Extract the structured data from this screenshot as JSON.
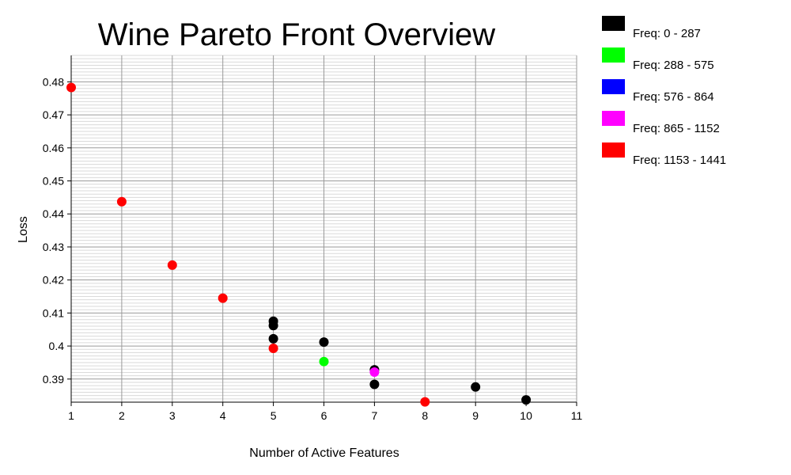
{
  "chart_data": {
    "type": "scatter",
    "title": "Wine Pareto Front Overview",
    "xlabel": "Number of Active Features",
    "ylabel": "Loss",
    "xlim": [
      1,
      11
    ],
    "ylim": [
      0.383,
      0.488
    ],
    "x_ticks": [
      "1",
      "2",
      "3",
      "4",
      "5",
      "6",
      "7",
      "8",
      "9",
      "10",
      "11"
    ],
    "y_ticks": [
      "0.39",
      "0.4",
      "0.41",
      "0.42",
      "0.43",
      "0.44",
      "0.45",
      "0.46",
      "0.47",
      "0.48"
    ],
    "grid": true,
    "legend_position": "right",
    "series": [
      {
        "name": "Freq: 0 - 287",
        "color": "#000000",
        "points": [
          [
            5,
            0.4075
          ],
          [
            5,
            0.4062
          ],
          [
            5,
            0.4022
          ],
          [
            6,
            0.4012
          ],
          [
            7,
            0.3928
          ],
          [
            7,
            0.3884
          ],
          [
            9,
            0.3876
          ],
          [
            10,
            0.3837
          ]
        ]
      },
      {
        "name": "Freq: 288 - 575",
        "color": "#00ff00",
        "points": [
          [
            6,
            0.3953
          ]
        ]
      },
      {
        "name": "Freq: 576 - 864",
        "color": "#0000ff",
        "points": []
      },
      {
        "name": "Freq: 865 - 1152",
        "color": "#ff00ff",
        "points": [
          [
            7,
            0.3921
          ]
        ]
      },
      {
        "name": "Freq: 1153 - 1441",
        "color": "#ff0000",
        "points": [
          [
            1,
            0.4783
          ],
          [
            2,
            0.4437
          ],
          [
            3,
            0.4245
          ],
          [
            4,
            0.4145
          ],
          [
            5,
            0.3993
          ],
          [
            8,
            0.3831
          ]
        ]
      }
    ]
  }
}
